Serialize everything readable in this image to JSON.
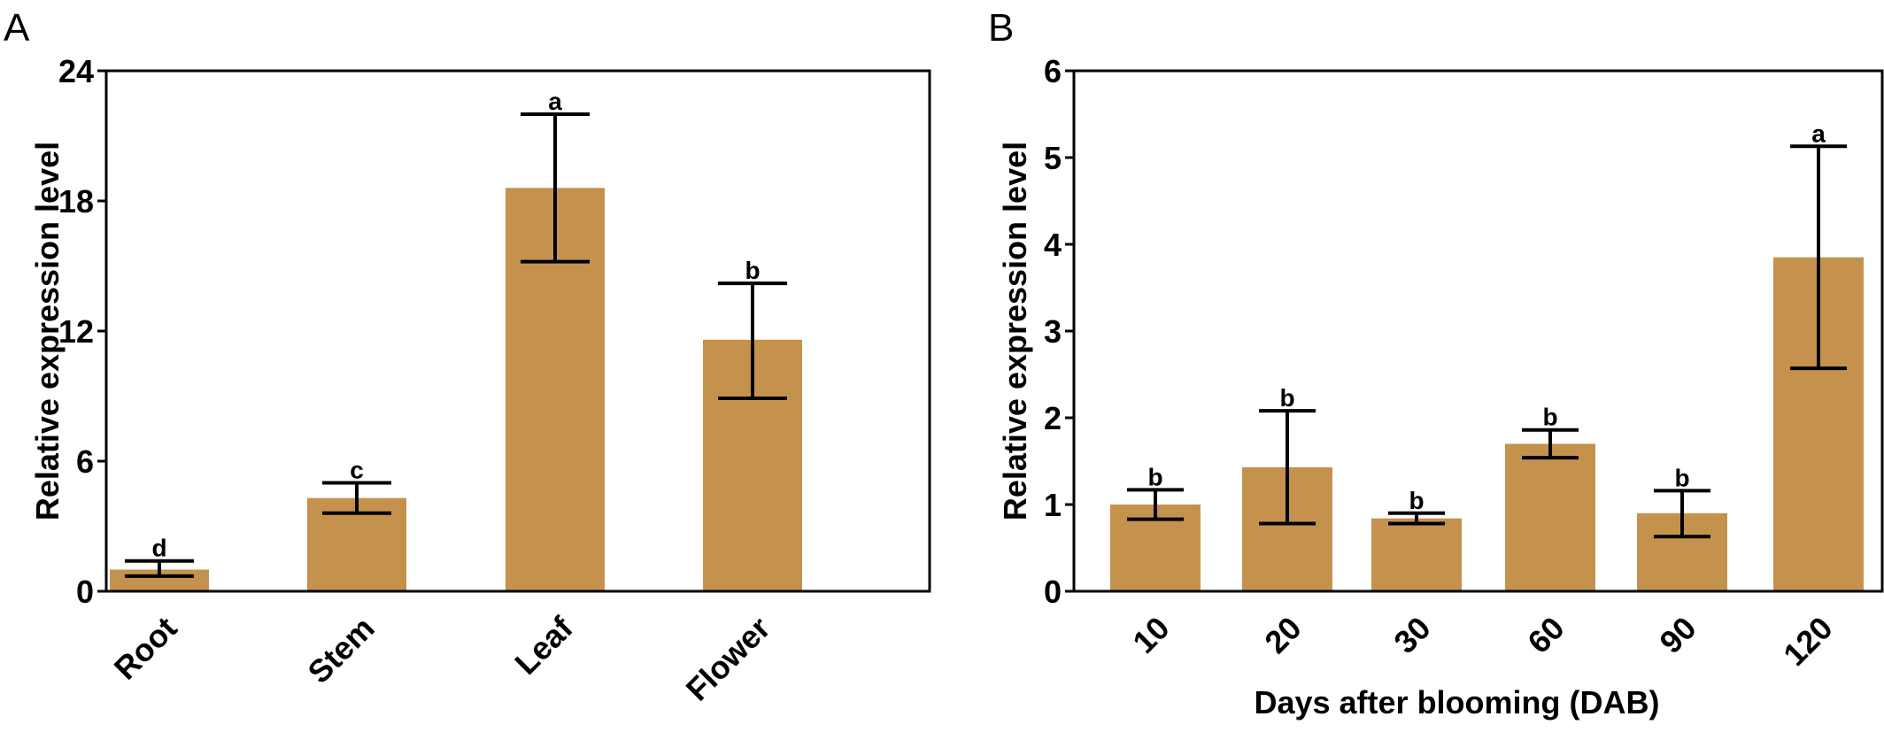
{
  "chart_data": [
    {
      "panel": "A",
      "type": "bar",
      "categories": [
        "Root",
        "Stem",
        "Leaf",
        "Flower"
      ],
      "values": [
        1.0,
        4.3,
        18.6,
        11.6
      ],
      "errors": [
        {
          "low": 0.7,
          "high": 1.4
        },
        {
          "low": 3.6,
          "high": 5.0
        },
        {
          "low": 15.2,
          "high": 22.0
        },
        {
          "low": 8.9,
          "high": 14.2
        }
      ],
      "significance": [
        "d",
        "c",
        "a",
        "b"
      ],
      "xlabel": "",
      "ylabel": "Relative expression level",
      "ylim": [
        0,
        24
      ],
      "yticks": [
        0,
        6,
        12,
        18,
        24
      ],
      "bar_color": "#c4924d",
      "grid": false
    },
    {
      "panel": "B",
      "type": "bar",
      "categories": [
        "10",
        "20",
        "30",
        "60",
        "90",
        "120"
      ],
      "values": [
        1.0,
        1.43,
        0.84,
        1.7,
        0.9,
        3.85
      ],
      "errors": [
        {
          "low": 0.83,
          "high": 1.17
        },
        {
          "low": 0.78,
          "high": 2.08
        },
        {
          "low": 0.78,
          "high": 0.9
        },
        {
          "low": 1.54,
          "high": 1.86
        },
        {
          "low": 0.63,
          "high": 1.16
        },
        {
          "low": 2.57,
          "high": 5.13
        }
      ],
      "significance": [
        "b",
        "b",
        "b",
        "b",
        "b",
        "a"
      ],
      "xlabel": "Days after blooming (DAB)",
      "ylabel": "Relative expression level",
      "ylim": [
        0,
        6
      ],
      "yticks": [
        0,
        1,
        2,
        3,
        4,
        5,
        6
      ],
      "bar_color": "#c4924d",
      "grid": false
    }
  ]
}
